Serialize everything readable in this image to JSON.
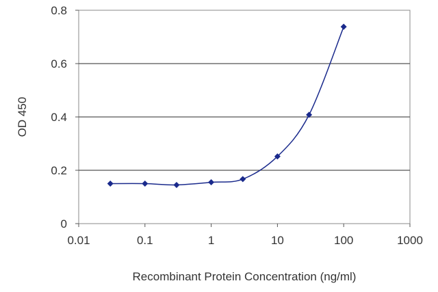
{
  "chart_data": {
    "type": "scatter",
    "title": "",
    "xlabel": "Recombinant Protein Concentration (ng/ml)",
    "ylabel": "OD 450",
    "x_scale": "log",
    "xlim": [
      0.01,
      1000
    ],
    "ylim": [
      0,
      0.8
    ],
    "x_ticks": [
      "0.01",
      "0.1",
      "1",
      "10",
      "100",
      "1000"
    ],
    "y_ticks": [
      "0",
      "0.2",
      "0.4",
      "0.6",
      "0.8"
    ],
    "grid": "horizontal",
    "legend": "none",
    "series": [
      {
        "x": [
          0.03,
          0.1,
          0.3,
          1,
          3,
          10,
          30,
          100
        ],
        "y": [
          0.15,
          0.15,
          0.145,
          0.155,
          0.167,
          0.252,
          0.408,
          0.738
        ],
        "color": "#1a2a8c",
        "curve": "smooth-fit"
      }
    ]
  }
}
